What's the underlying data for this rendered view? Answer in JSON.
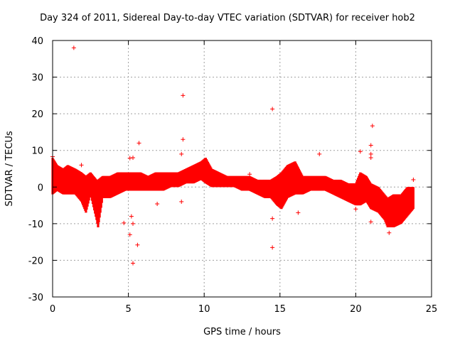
{
  "chart_data": {
    "type": "scatter",
    "title": "Day 324 of 2011, Sidereal Day-to-day VTEC variation (SDTVAR) for receiver hob2",
    "xlabel": "GPS time / hours",
    "ylabel": "SDTVAR / TECUs",
    "xlim": [
      0,
      25
    ],
    "ylim": [
      -30,
      40
    ],
    "xticks": [
      "0",
      "5",
      "10",
      "15",
      "20",
      "25"
    ],
    "yticks": [
      "-30",
      "-20",
      "-10",
      "0",
      "10",
      "20",
      "30",
      "40"
    ],
    "grid": true,
    "marker": "+",
    "color": "#ff0000",
    "band": [
      [
        0.0,
        -2,
        8
      ],
      [
        0.3,
        -1,
        6
      ],
      [
        0.7,
        -2,
        5
      ],
      [
        1.0,
        -2,
        6
      ],
      [
        1.5,
        -2,
        5
      ],
      [
        1.9,
        -4,
        4
      ],
      [
        2.2,
        -7,
        3
      ],
      [
        2.5,
        -2,
        4
      ],
      [
        2.9,
        -9,
        2
      ],
      [
        3.0,
        -11,
        2
      ],
      [
        3.3,
        -3,
        3
      ],
      [
        3.8,
        -3,
        3
      ],
      [
        4.3,
        -2,
        4
      ],
      [
        4.8,
        -1,
        4
      ],
      [
        5.3,
        -1,
        4
      ],
      [
        5.8,
        -1,
        4
      ],
      [
        6.3,
        -1,
        3
      ],
      [
        6.8,
        -1,
        4
      ],
      [
        7.3,
        -1,
        4
      ],
      [
        7.8,
        0,
        4
      ],
      [
        8.3,
        0,
        4
      ],
      [
        8.8,
        1,
        5
      ],
      [
        9.3,
        1,
        6
      ],
      [
        9.8,
        2,
        7
      ],
      [
        10.1,
        1,
        8
      ],
      [
        10.5,
        0,
        5
      ],
      [
        11.0,
        0,
        4
      ],
      [
        11.5,
        0,
        3
      ],
      [
        12.0,
        0,
        3
      ],
      [
        12.5,
        -1,
        3
      ],
      [
        13.0,
        -1,
        3
      ],
      [
        13.5,
        -2,
        2
      ],
      [
        14.0,
        -3,
        2
      ],
      [
        14.4,
        -3,
        2
      ],
      [
        14.8,
        -5,
        3
      ],
      [
        15.1,
        -6,
        4
      ],
      [
        15.5,
        -3,
        6
      ],
      [
        16.0,
        -2,
        7
      ],
      [
        16.5,
        -2,
        3
      ],
      [
        17.0,
        -1,
        3
      ],
      [
        17.5,
        -1,
        3
      ],
      [
        18.0,
        -1,
        3
      ],
      [
        18.5,
        -2,
        2
      ],
      [
        19.0,
        -3,
        2
      ],
      [
        19.5,
        -4,
        1
      ],
      [
        20.0,
        -5,
        1
      ],
      [
        20.3,
        -5,
        4
      ],
      [
        20.7,
        -4,
        3
      ],
      [
        21.0,
        -6,
        1
      ],
      [
        21.5,
        -7,
        0
      ],
      [
        21.9,
        -9,
        -2
      ],
      [
        22.1,
        -11,
        -3
      ],
      [
        22.5,
        -11,
        -2
      ],
      [
        23.0,
        -10,
        -2
      ],
      [
        23.4,
        -8,
        0
      ],
      [
        23.8,
        -6,
        0
      ]
    ],
    "outliers": [
      [
        1.4,
        38
      ],
      [
        8.6,
        25
      ],
      [
        14.5,
        21.3
      ],
      [
        8.6,
        13
      ],
      [
        5.7,
        12
      ],
      [
        21.1,
        16.7
      ],
      [
        21.0,
        11.4
      ],
      [
        17.6,
        9
      ],
      [
        20.3,
        9.7
      ],
      [
        21.0,
        9
      ],
      [
        21.0,
        8
      ],
      [
        8.5,
        9
      ],
      [
        5.3,
        8
      ],
      [
        5.1,
        7.9
      ],
      [
        5.2,
        -8
      ],
      [
        5.3,
        -10
      ],
      [
        5.1,
        -13
      ],
      [
        5.6,
        -15.8
      ],
      [
        5.3,
        -20.8
      ],
      [
        4.7,
        -9.8
      ],
      [
        14.5,
        -16.5
      ],
      [
        14.5,
        -8.6
      ],
      [
        21.0,
        -9.5
      ],
      [
        22.2,
        -12.5
      ],
      [
        23.8,
        2
      ],
      [
        6.9,
        -4.6
      ],
      [
        8.5,
        -4
      ],
      [
        13.0,
        3.5
      ],
      [
        16.2,
        -7
      ],
      [
        20.0,
        -6
      ],
      [
        1.9,
        6
      ],
      [
        0.0,
        8.3
      ]
    ]
  }
}
